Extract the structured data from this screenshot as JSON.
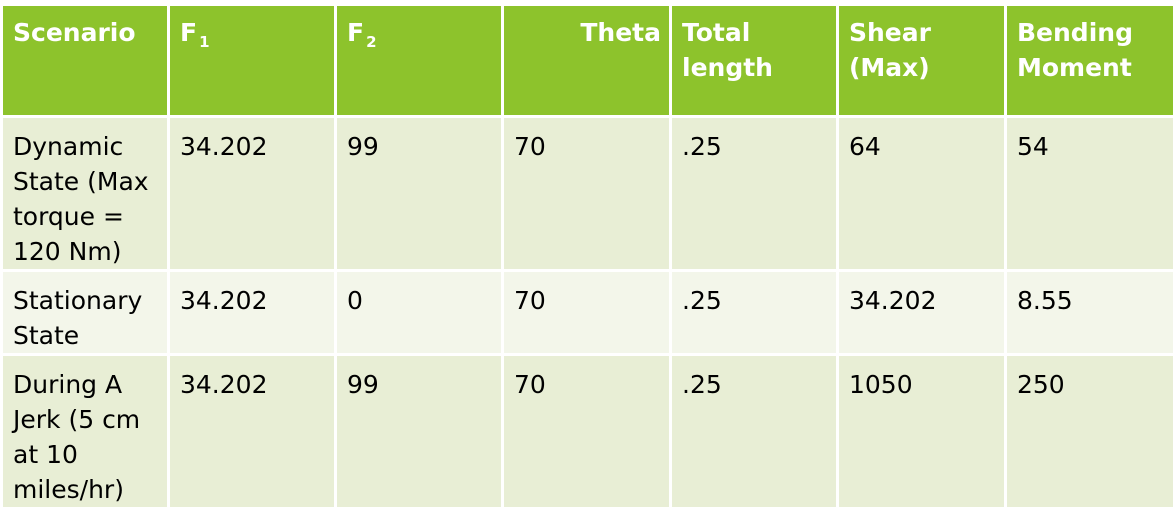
{
  "table": {
    "headers": [
      {
        "text": "Scenario",
        "sub": ""
      },
      {
        "text": "F",
        "sub": "1"
      },
      {
        "text": "F",
        "sub": "2"
      },
      {
        "text": "Theta",
        "sub": ""
      },
      {
        "text": "Total length",
        "sub": ""
      },
      {
        "text": "Shear (Max)",
        "sub": ""
      },
      {
        "text": "Bending Moment",
        "sub": ""
      }
    ],
    "rows": [
      [
        "Dynamic State (Max torque = 120 Nm)",
        "34.202",
        "99",
        "70",
        ".25",
        "64",
        "54"
      ],
      [
        "Stationary State",
        "34.202",
        "0",
        "70",
        ".25",
        "34.202",
        "8.55"
      ],
      [
        "During A Jerk (5 cm at 10 miles/hr)",
        "34.202",
        "99",
        "70",
        ".25",
        "1050",
        "250"
      ]
    ]
  },
  "colors": {
    "header_bg": "#8dc32c",
    "row_odd_bg": "#e8eed5",
    "row_even_bg": "#f3f6ea"
  }
}
